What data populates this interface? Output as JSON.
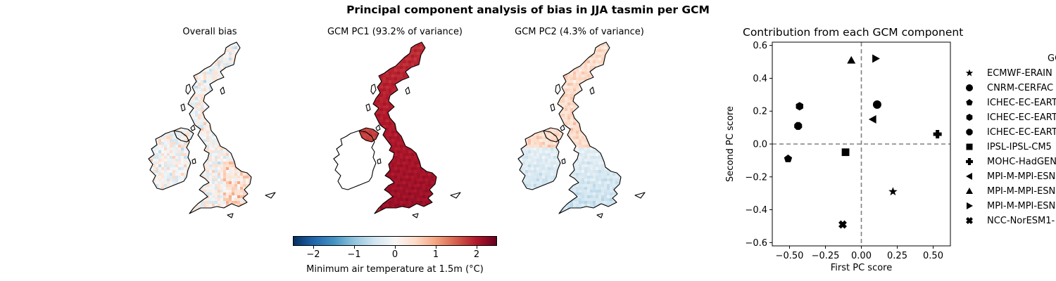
{
  "suptitle": "Principal component analysis of bias in JJA tasmin per GCM",
  "maps": [
    {
      "title": "Overall bias",
      "mode": "overall"
    },
    {
      "title": "GCM PC1 (93.2% of variance)",
      "mode": "pc1"
    },
    {
      "title": "GCM PC2 (4.3% of variance)",
      "mode": "pc2"
    }
  ],
  "colorbar": {
    "label": "Minimum air temperature at 1.5m (°C)",
    "range": [
      -2.5,
      2.5
    ],
    "ticks": [
      -2,
      -1,
      0,
      1,
      2
    ],
    "tick_labels": [
      "−2",
      "−1",
      "0",
      "1",
      "2"
    ],
    "colormap": "RdBu_r"
  },
  "chart_data": {
    "type": "scatter",
    "title": "Contribution from each GCM component",
    "xlabel": "First PC score",
    "ylabel": "Second PC score",
    "xlim": [
      -0.62,
      0.62
    ],
    "ylim": [
      -0.62,
      0.62
    ],
    "xticks": [
      -0.5,
      -0.25,
      0.0,
      0.25,
      0.5
    ],
    "xtick_labels": [
      "−0.50",
      "−0.25",
      "0.00",
      "0.25",
      "0.50"
    ],
    "yticks": [
      -0.6,
      -0.4,
      -0.2,
      0.0,
      0.2,
      0.4,
      0.6
    ],
    "ytick_labels": [
      "−0.6",
      "−0.4",
      "−0.2",
      "0.0",
      "0.2",
      "0.4",
      "0.6"
    ],
    "reference_lines": {
      "x": 0,
      "y": 0,
      "style": "dashed",
      "color": "#808080"
    },
    "grid": false,
    "legend_title": "GC",
    "series": [
      {
        "name": "ECMWF-ERAIN",
        "marker": "star",
        "x": 0.22,
        "y": -0.29
      },
      {
        "name": "CNRM-CERFAC",
        "marker": "circle",
        "x": 0.11,
        "y": 0.24
      },
      {
        "name": "ICHEC-EC-EART",
        "marker": "pentagon",
        "x": -0.51,
        "y": -0.09
      },
      {
        "name": "ICHEC-EC-EART",
        "marker": "hexagon",
        "x": -0.43,
        "y": 0.23
      },
      {
        "name": "ICHEC-EC-EART",
        "marker": "octagon",
        "x": -0.44,
        "y": 0.11
      },
      {
        "name": "IPSL-IPSL-CM5",
        "marker": "square",
        "x": -0.11,
        "y": -0.05
      },
      {
        "name": "MOHC-HadGEN",
        "marker": "plus",
        "x": 0.53,
        "y": 0.06
      },
      {
        "name": "MPI-M-MPI-ESN",
        "marker": "triangle-left",
        "x": 0.08,
        "y": 0.15
      },
      {
        "name": "MPI-M-MPI-ESN",
        "marker": "triangle-up",
        "x": -0.07,
        "y": 0.51
      },
      {
        "name": "MPI-M-MPI-ESN",
        "marker": "triangle-right",
        "x": 0.1,
        "y": 0.52
      },
      {
        "name": "NCC-NorESM1-",
        "marker": "x-filled",
        "x": -0.13,
        "y": -0.49
      }
    ]
  }
}
